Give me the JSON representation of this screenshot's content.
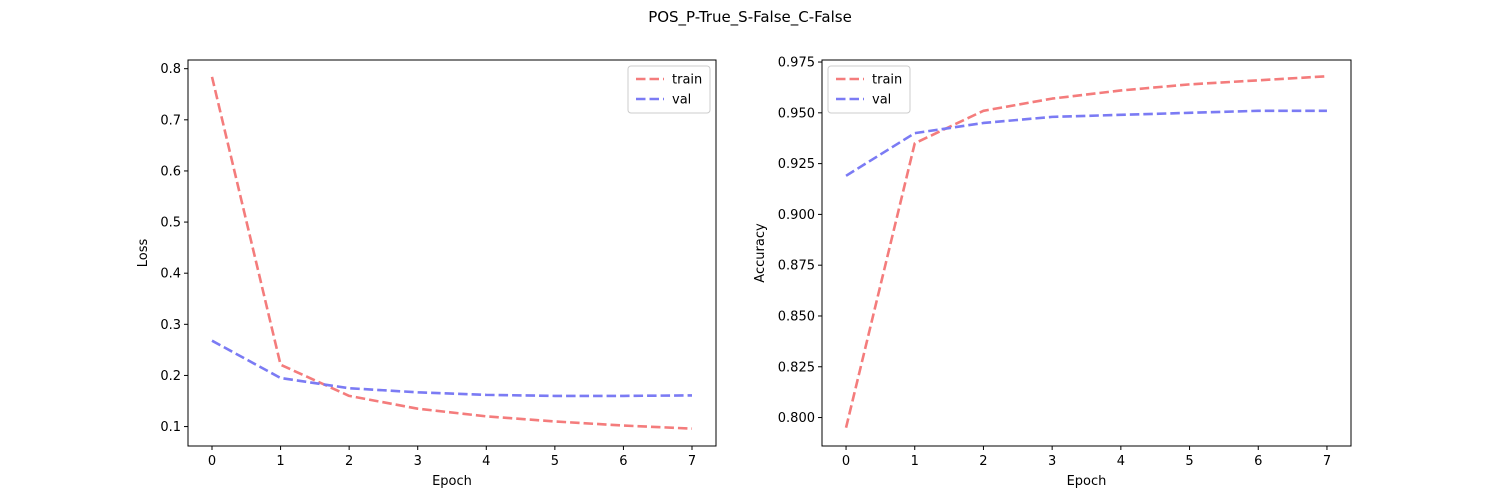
{
  "figure": {
    "title": "POS_P-True_S-False_C-False"
  },
  "chart_data": [
    {
      "type": "line",
      "xlabel": "Epoch",
      "ylabel": "Loss",
      "x": [
        0,
        1,
        2,
        3,
        4,
        5,
        6,
        7
      ],
      "xlim": [
        -0.35,
        7.35
      ],
      "ylim": [
        0.062,
        0.817
      ],
      "xticks": [
        0,
        1,
        2,
        3,
        4,
        5,
        6,
        7
      ],
      "yticks": [
        0.1,
        0.2,
        0.3,
        0.4,
        0.5,
        0.6,
        0.7,
        0.8
      ],
      "yticks_labels": [
        "0.1",
        "0.2",
        "0.3",
        "0.4",
        "0.5",
        "0.6",
        "0.7",
        "0.8"
      ],
      "legend_position": "top-right",
      "series": [
        {
          "name": "train",
          "color": "#f47c7c",
          "values": [
            0.784,
            0.221,
            0.16,
            0.135,
            0.12,
            0.11,
            0.102,
            0.096
          ]
        },
        {
          "name": "val",
          "color": "#7b7bf4",
          "values": [
            0.268,
            0.195,
            0.175,
            0.167,
            0.162,
            0.16,
            0.16,
            0.161
          ]
        }
      ]
    },
    {
      "type": "line",
      "xlabel": "Epoch",
      "ylabel": "Accuracy",
      "x": [
        0,
        1,
        2,
        3,
        4,
        5,
        6,
        7
      ],
      "xlim": [
        -0.35,
        7.35
      ],
      "ylim": [
        0.786,
        0.976
      ],
      "xticks": [
        0,
        1,
        2,
        3,
        4,
        5,
        6,
        7
      ],
      "yticks": [
        0.8,
        0.825,
        0.85,
        0.875,
        0.9,
        0.925,
        0.95,
        0.975
      ],
      "yticks_labels": [
        "0.800",
        "0.825",
        "0.850",
        "0.875",
        "0.900",
        "0.925",
        "0.950",
        "0.975"
      ],
      "legend_position": "top-left",
      "series": [
        {
          "name": "train",
          "color": "#f47c7c",
          "values": [
            0.795,
            0.935,
            0.951,
            0.957,
            0.961,
            0.964,
            0.966,
            0.968
          ]
        },
        {
          "name": "val",
          "color": "#7b7bf4",
          "values": [
            0.919,
            0.94,
            0.945,
            0.948,
            0.949,
            0.95,
            0.951,
            0.951
          ]
        }
      ]
    }
  ]
}
